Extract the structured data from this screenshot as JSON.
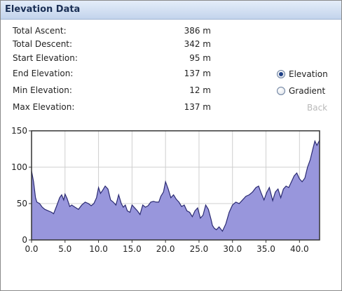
{
  "panel": {
    "title": "Elevation Data"
  },
  "stats": [
    {
      "label": "Total Ascent:",
      "value": "386 m"
    },
    {
      "label": "Total Descent:",
      "value": "342 m"
    },
    {
      "label": "Start Elevation:",
      "value": "95 m"
    },
    {
      "label": "End Elevation:",
      "value": "137 m"
    },
    {
      "label": "Min Elevation:",
      "value": "12 m"
    },
    {
      "label": "Max Elevation:",
      "value": "137 m"
    }
  ],
  "view_options": {
    "elevation_label": "Elevation",
    "gradient_label": "Gradient",
    "selected": "Elevation"
  },
  "back_label": "Back",
  "colors": {
    "fill": "#9896dc",
    "line": "#2a2a72",
    "grid": "#cfcfcf",
    "frame": "#333333"
  },
  "chart_data": {
    "type": "area",
    "xlim": [
      0,
      43
    ],
    "ylim": [
      0,
      150
    ],
    "xticks": [
      "0.0",
      "5.0",
      "10.0",
      "15.0",
      "20.0",
      "25.0",
      "30.0",
      "35.0",
      "40.0"
    ],
    "yticks": [
      "0",
      "50",
      "100",
      "150"
    ],
    "grid": true,
    "series": [
      {
        "x": [
          0,
          0.3,
          0.6,
          0.8,
          1.2,
          1.6,
          2.0,
          2.5,
          3.0,
          3.3,
          3.8,
          4.2,
          4.5,
          4.8,
          5.0,
          5.3,
          5.7,
          6.0,
          6.5,
          7.0,
          7.5,
          8.0,
          8.5,
          8.9,
          9.3,
          9.7,
          10.0,
          10.3,
          10.6,
          11.0,
          11.4,
          11.8,
          12.2,
          12.6,
          13.0,
          13.4,
          13.7,
          14.0,
          14.3,
          14.7,
          15.0,
          15.4,
          15.8,
          16.2,
          16.6,
          17.0,
          17.4,
          17.8,
          18.2,
          18.6,
          19.0,
          19.3,
          19.7,
          20.0,
          20.4,
          20.8,
          21.2,
          21.6,
          22.0,
          22.4,
          22.8,
          23.2,
          23.6,
          24.0,
          24.4,
          24.8,
          25.2,
          25.6,
          26.0,
          26.4,
          26.8,
          27.0,
          27.3,
          27.6,
          28.0,
          28.5,
          29.0,
          29.5,
          30.0,
          30.5,
          31.0,
          31.5,
          32.0,
          32.5,
          33.0,
          33.5,
          33.9,
          34.3,
          34.7,
          35.1,
          35.5,
          36.0,
          36.4,
          36.8,
          37.2,
          37.6,
          38.0,
          38.4,
          38.8,
          39.2,
          39.6,
          40.0,
          40.4,
          40.8,
          41.2,
          41.6,
          42.0,
          42.3,
          42.6,
          43.0
        ],
        "y": [
          95,
          80,
          58,
          52,
          50,
          45,
          42,
          40,
          38,
          36,
          48,
          58,
          62,
          55,
          63,
          57,
          46,
          48,
          45,
          42,
          48,
          52,
          50,
          47,
          50,
          58,
          72,
          64,
          68,
          74,
          70,
          55,
          52,
          48,
          62,
          50,
          45,
          48,
          40,
          38,
          48,
          44,
          40,
          35,
          48,
          45,
          47,
          52,
          53,
          52,
          52,
          60,
          66,
          80,
          70,
          58,
          62,
          56,
          52,
          46,
          48,
          40,
          38,
          32,
          40,
          44,
          30,
          34,
          48,
          42,
          28,
          20,
          16,
          14,
          18,
          12,
          22,
          38,
          48,
          52,
          50,
          55,
          60,
          62,
          66,
          72,
          74,
          64,
          55,
          65,
          72,
          54,
          66,
          70,
          58,
          70,
          74,
          72,
          80,
          88,
          92,
          84,
          80,
          85,
          100,
          110,
          125,
          136,
          130,
          137
        ]
      }
    ]
  }
}
